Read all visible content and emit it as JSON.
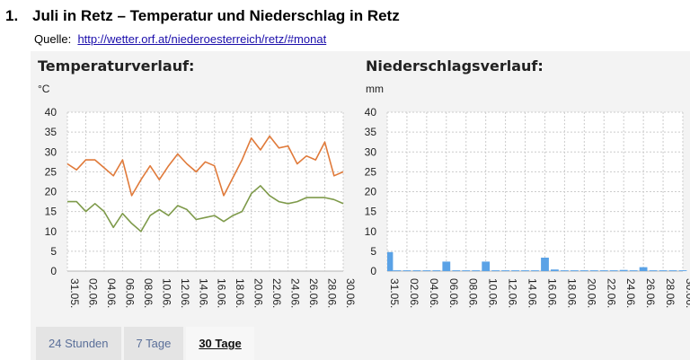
{
  "heading": {
    "number": "1.",
    "text": "Juli in Retz – Temperatur und Niederschlag in Retz"
  },
  "source": {
    "label": "Quelle:",
    "link": "http://wetter.orf.at/niederoesterreich/retz/#monat"
  },
  "tabs": [
    {
      "label": "24 Stunden",
      "active": false
    },
    {
      "label": "7 Tage",
      "active": false
    },
    {
      "label": "30 Tage",
      "active": true
    }
  ],
  "colors": {
    "max_temp": "#e07a3a",
    "min_temp": "#7e9a4a",
    "precip": "#5aa2e6",
    "grid": "#cccccc"
  },
  "chart_data": [
    {
      "type": "line",
      "title": "Temperaturverlauf:",
      "ylabel": "°C",
      "ylim": [
        0,
        40
      ],
      "yticks": [
        0,
        5,
        10,
        15,
        20,
        25,
        30,
        35,
        40
      ],
      "x_tick_labels": [
        "31.05.",
        "02.06.",
        "04.06.",
        "06.06.",
        "08.06.",
        "10.06.",
        "12.06.",
        "14.06.",
        "16.06.",
        "18.06.",
        "20.06.",
        "22.06.",
        "24.06.",
        "26.06.",
        "28.06.",
        "30.06."
      ],
      "x": [
        "31.05.",
        "01.06.",
        "02.06.",
        "03.06.",
        "04.06.",
        "05.06.",
        "06.06.",
        "07.06.",
        "08.06.",
        "09.06.",
        "10.06.",
        "11.06.",
        "12.06.",
        "13.06.",
        "14.06.",
        "15.06.",
        "16.06.",
        "17.06.",
        "18.06.",
        "19.06.",
        "20.06.",
        "21.06.",
        "22.06.",
        "23.06.",
        "24.06.",
        "25.06.",
        "26.06.",
        "27.06.",
        "28.06.",
        "29.06.",
        "30.06."
      ],
      "grid": true,
      "series": [
        {
          "color": "#e07a3a",
          "values": [
            27,
            25.5,
            28,
            28,
            26,
            24,
            28,
            19,
            23,
            26.5,
            23,
            26.5,
            29.5,
            27,
            25,
            27.5,
            26.5,
            19,
            23.5,
            28,
            33.5,
            30.5,
            34,
            31,
            31.5,
            27,
            29,
            28,
            32.5,
            24,
            25
          ]
        },
        {
          "color": "#7e9a4a",
          "values": [
            17.5,
            17.5,
            15,
            17,
            15,
            11,
            14.5,
            12,
            10,
            14,
            15.5,
            14,
            16.5,
            15.5,
            13,
            13.5,
            14,
            12.5,
            14,
            15,
            19.5,
            21.5,
            19,
            17.5,
            17,
            17.5,
            18.5,
            18.5,
            18.5,
            18,
            17
          ]
        }
      ]
    },
    {
      "type": "bar",
      "title": "Niederschlagsverlauf:",
      "ylabel": "mm",
      "ylim": [
        0,
        40
      ],
      "yticks": [
        0,
        5,
        10,
        15,
        20,
        25,
        30,
        35,
        40
      ],
      "x_tick_labels": [
        "31.05.",
        "02.06.",
        "04.06.",
        "06.06.",
        "08.06.",
        "10.06.",
        "12.06.",
        "14.06.",
        "16.06.",
        "18.06.",
        "20.06.",
        "22.06.",
        "24.06.",
        "26.06.",
        "28.06.",
        "30.06."
      ],
      "categories": [
        "31.05.",
        "01.06.",
        "02.06.",
        "03.06.",
        "04.06.",
        "05.06.",
        "06.06.",
        "07.06.",
        "08.06.",
        "09.06.",
        "10.06.",
        "11.06.",
        "12.06.",
        "13.06.",
        "14.06.",
        "15.06.",
        "16.06.",
        "17.06.",
        "18.06.",
        "19.06.",
        "20.06.",
        "21.06.",
        "22.06.",
        "23.06.",
        "24.06.",
        "25.06.",
        "26.06.",
        "27.06.",
        "28.06.",
        "29.06.",
        "30.06."
      ],
      "values": [
        4.8,
        0.2,
        0.2,
        0.2,
        0.2,
        0.2,
        2.4,
        0.2,
        0.2,
        0.2,
        2.4,
        0.2,
        0.2,
        0.2,
        0.2,
        0.2,
        3.4,
        0.4,
        0.2,
        0.2,
        0.2,
        0.2,
        0.2,
        0.2,
        0.3,
        0.2,
        1.0,
        0.2,
        0.2,
        0.2,
        0.2
      ],
      "grid": true
    }
  ]
}
